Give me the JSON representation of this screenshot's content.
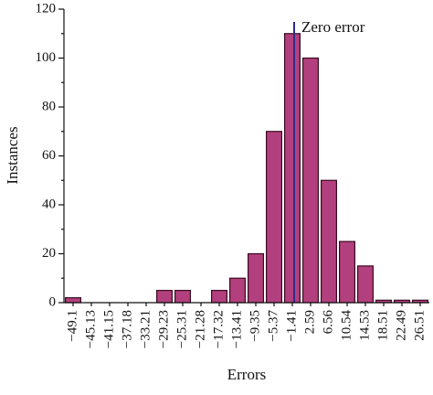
{
  "chart_data": {
    "type": "bar",
    "x_label": "Errors",
    "y_label": "Instances",
    "annotation": "Zero error",
    "categories": [
      "−49.1",
      "−45.13",
      "−41.15",
      "−37.18",
      "−33.21",
      "−29.23",
      "−25.31",
      "−21.28",
      "−17.32",
      "−13.41",
      "−9.35",
      "−5.37",
      "−1.41",
      "2.59",
      "6.56",
      "10.54",
      "14.53",
      "18.51",
      "22.49",
      "26.51"
    ],
    "values": [
      2,
      0,
      0,
      0,
      0,
      5,
      5,
      0,
      5,
      10,
      20,
      70,
      110,
      100,
      50,
      25,
      15,
      1,
      1,
      1
    ],
    "color": "#b3407e",
    "ylim": [
      0,
      120
    ],
    "yticks": [
      0,
      20,
      40,
      60,
      80,
      100,
      120
    ],
    "grid": false
  }
}
